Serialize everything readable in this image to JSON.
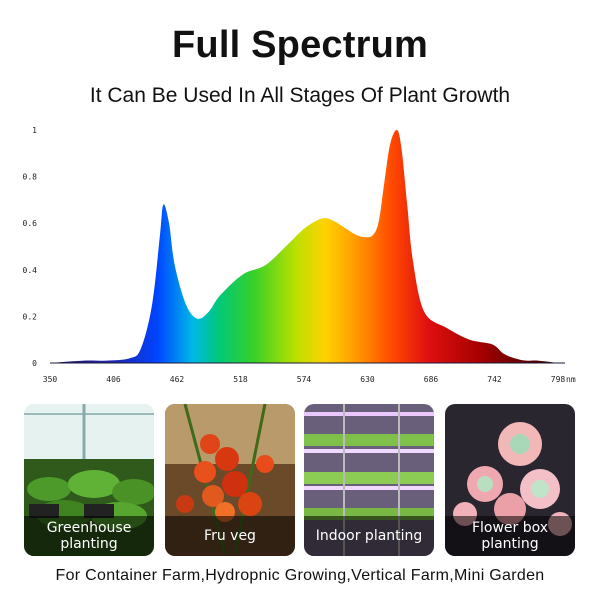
{
  "header": {
    "title": "Full Spectrum",
    "subtitle": "It Can Be Used In All Stages Of Plant Growth"
  },
  "chart_data": {
    "type": "area",
    "title": "",
    "xlabel": "",
    "ylabel": "",
    "x_unit": "nm",
    "xlim": [
      350,
      798
    ],
    "ylim": [
      0,
      1
    ],
    "x_ticks": [
      "350",
      "406",
      "462",
      "518",
      "574",
      "630",
      "686",
      "742",
      "798"
    ],
    "y_ticks": [
      "0",
      "0.2",
      "0.4",
      "0.6",
      "0.8",
      "1"
    ],
    "grid": false,
    "fill": "wavelength-rainbow",
    "series": [
      {
        "x": [
          350,
          380,
          400,
          420,
          430,
          440,
          447,
          450,
          455,
          460,
          470,
          480,
          490,
          500,
          520,
          540,
          560,
          575,
          590,
          600,
          610,
          620,
          628,
          635,
          640,
          645,
          650,
          656,
          660,
          665,
          670,
          680,
          700,
          720,
          740,
          750,
          760,
          770,
          780,
          798
        ],
        "y": [
          0.0,
          0.01,
          0.01,
          0.02,
          0.06,
          0.25,
          0.55,
          0.68,
          0.6,
          0.42,
          0.25,
          0.19,
          0.22,
          0.29,
          0.38,
          0.42,
          0.51,
          0.58,
          0.62,
          0.61,
          0.58,
          0.55,
          0.54,
          0.55,
          0.61,
          0.78,
          0.94,
          1.0,
          0.92,
          0.68,
          0.44,
          0.22,
          0.15,
          0.1,
          0.08,
          0.04,
          0.02,
          0.01,
          0.01,
          0.0
        ]
      }
    ]
  },
  "photos": [
    {
      "caption": "Greenhouse\nplanting"
    },
    {
      "caption": "Fru veg"
    },
    {
      "caption": "Indoor planting"
    },
    {
      "caption": "Flower box\nplanting"
    }
  ],
  "footer": "For Container Farm,Hydropnic Growing,Vertical Farm,Mini Garden"
}
